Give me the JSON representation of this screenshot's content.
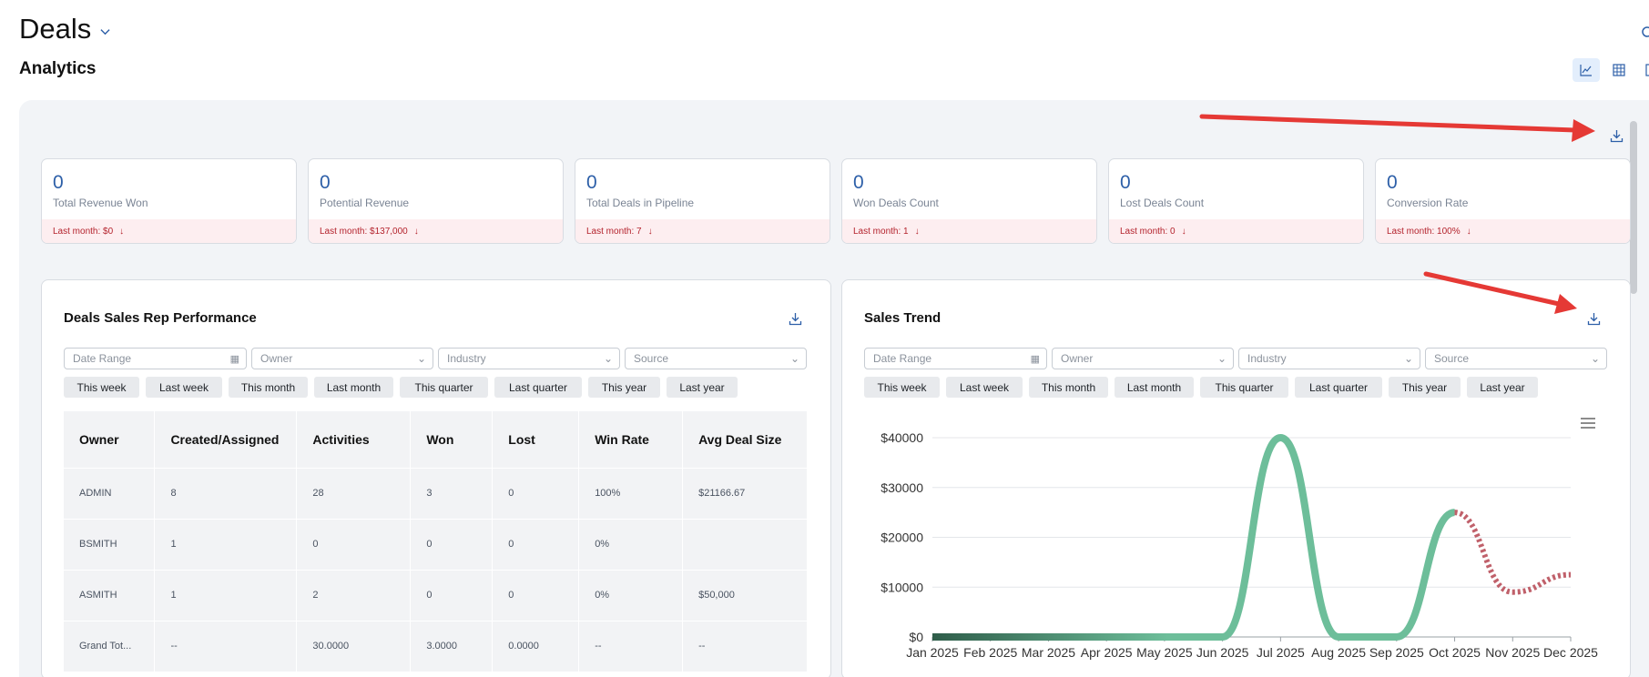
{
  "header": {
    "title": "Deals",
    "subtitle": "Analytics"
  },
  "view_switch": [
    {
      "name": "chart-view",
      "icon": "line-chart-icon",
      "active": true
    },
    {
      "name": "grid-view",
      "icon": "grid-icon",
      "active": false
    },
    {
      "name": "columns-view",
      "icon": "columns-icon",
      "active": false
    }
  ],
  "kpis": [
    {
      "value": "0",
      "label": "Total Revenue Won",
      "footer": "Last month: $0"
    },
    {
      "value": "0",
      "label": "Potential Revenue",
      "footer": "Last month: $137,000"
    },
    {
      "value": "0",
      "label": "Total Deals in Pipeline",
      "footer": "Last month: 7"
    },
    {
      "value": "0",
      "label": "Won Deals Count",
      "footer": "Last month: 1"
    },
    {
      "value": "0",
      "label": "Lost Deals Count",
      "footer": "Last month: 0"
    },
    {
      "value": "0",
      "label": "Conversion Rate",
      "footer": "Last month: 100%"
    }
  ],
  "performance": {
    "title": "Deals Sales Rep Performance",
    "filters": {
      "date_range": "Date Range",
      "owner": "Owner",
      "industry": "Industry",
      "source": "Source"
    },
    "quick_ranges": [
      "This week",
      "Last week",
      "This month",
      "Last month",
      "This quarter",
      "Last quarter",
      "This year",
      "Last year"
    ],
    "columns": [
      "Owner",
      "Created/Assigned",
      "Activities",
      "Won",
      "Lost",
      "Win Rate",
      "Avg Deal Size"
    ],
    "rows": [
      [
        "ADMIN",
        "8",
        "28",
        "3",
        "0",
        "100%",
        "$21166.67"
      ],
      [
        "BSMITH",
        "1",
        "0",
        "0",
        "0",
        "0%",
        ""
      ],
      [
        "ASMITH",
        "1",
        "2",
        "0",
        "0",
        "0%",
        "$50,000"
      ],
      [
        "Grand Tot...",
        "--",
        "30.0000",
        "3.0000",
        "0.0000",
        "--",
        "--"
      ]
    ]
  },
  "trend": {
    "title": "Sales Trend",
    "filters": {
      "date_range": "Date Range",
      "owner": "Owner",
      "industry": "Industry",
      "source": "Source"
    },
    "quick_ranges": [
      "This week",
      "Last week",
      "This month",
      "Last month",
      "This quarter",
      "Last quarter",
      "This year",
      "Last year"
    ]
  },
  "colors": {
    "accent": "#2d5fa8",
    "negative": "#b4232d",
    "actual_line": "#6dbe9a",
    "actual_line_start": "#2f5d4a",
    "forecast_line": "#c0606a",
    "annotation_arrow": "#e53935"
  },
  "chart_data": {
    "type": "line",
    "x": [
      "Jan 2025",
      "Feb 2025",
      "Mar 2025",
      "Apr 2025",
      "May 2025",
      "Jun 2025",
      "Jul 2025",
      "Aug 2025",
      "Sep 2025",
      "Oct 2025",
      "Nov 2025",
      "Dec 2025"
    ],
    "series": [
      {
        "style": "solid",
        "values": [
          0,
          0,
          0,
          0,
          0,
          0,
          40000,
          0,
          0,
          25000,
          null,
          null
        ]
      },
      {
        "style": "dotted",
        "values": [
          null,
          null,
          null,
          null,
          null,
          null,
          null,
          null,
          null,
          25000,
          9000,
          12500
        ]
      }
    ],
    "y_ticks": [
      "$0",
      "$10000",
      "$20000",
      "$30000",
      "$40000"
    ],
    "ylim": [
      0,
      40000
    ],
    "grid": true,
    "legend": "none"
  }
}
